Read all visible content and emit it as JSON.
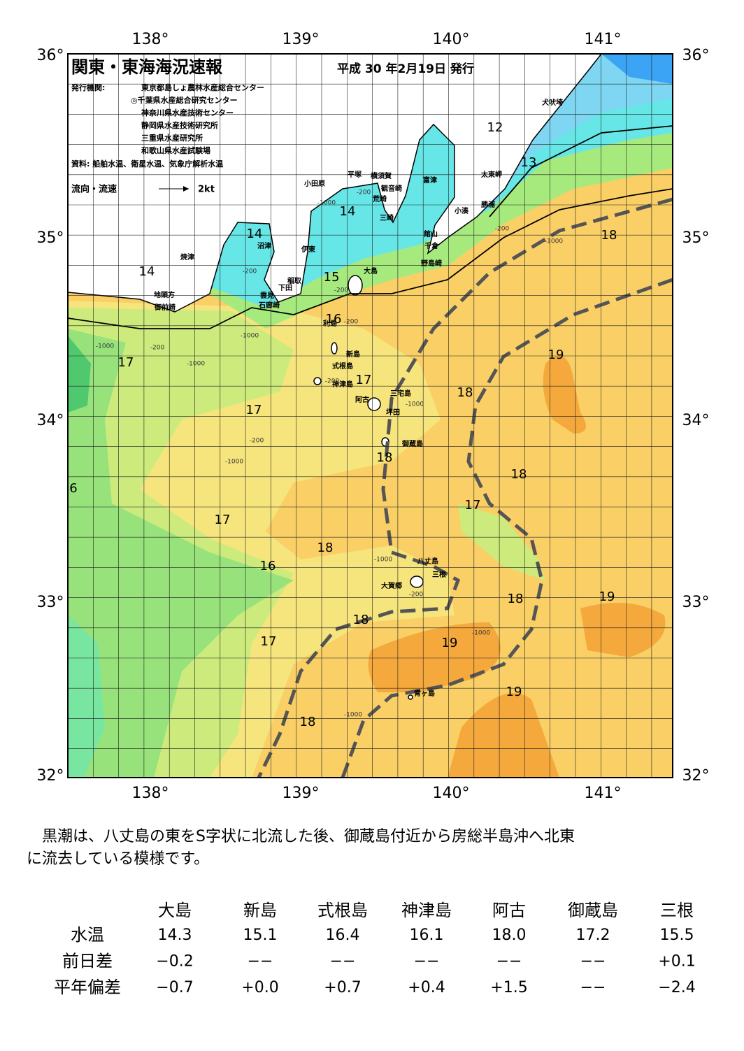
{
  "header": {
    "title": "関東・東海海況速報",
    "date": "平成 30 年2月19日 発行"
  },
  "publishers": {
    "label": "発行機関:",
    "items": [
      "東京都島しょ農林水産総合センター",
      "◎千葉県水産総合研究センター",
      "神奈川県水産技術センター",
      "静岡県水産技術研究所",
      "三重県水産研究所",
      "和歌山県水産試験場"
    ]
  },
  "source": "資料: 船舶水温、衛星水温、気象庁解析水温",
  "legend": {
    "label": "流向・流速",
    "scale": "2kt"
  },
  "axes": {
    "lon": [
      "138°",
      "139°",
      "140°",
      "141°"
    ],
    "lat": [
      "36°",
      "35°",
      "34°",
      "33°",
      "32°"
    ]
  },
  "isotherm_labels": [
    "12",
    "13",
    "14",
    "14",
    "14",
    "15",
    "16",
    "17",
    "17",
    "17",
    "18",
    "19",
    "18",
    "18",
    "18",
    "17",
    "6",
    "17",
    "18",
    "16",
    "18",
    "19",
    "18",
    "17",
    "19",
    "19",
    "18"
  ],
  "place_names": [
    "犬吠埼",
    "太東岬",
    "勝浦",
    "小湊",
    "富津",
    "観音崎",
    "横須賀",
    "平塚",
    "小田原",
    "荒崎",
    "三崎",
    "館山",
    "千倉",
    "野島崎",
    "沼津",
    "焼津",
    "伊東",
    "稲取",
    "下田",
    "雲見",
    "石廊崎",
    "地頭方",
    "御前崎",
    "大島",
    "利島",
    "新島",
    "式根島",
    "神津島",
    "三宅島",
    "阿古",
    "坪田",
    "御蔵島",
    "八丈島",
    "三根",
    "大賀郷",
    "青ヶ島"
  ],
  "depth_labels": [
    "-200",
    "-1000",
    "-200",
    "-1000",
    "-200",
    "-200",
    "-200",
    "-1000",
    "-200",
    "-1000",
    "-1000",
    "-200",
    "-1000",
    "-200",
    "-1000",
    "-1000",
    "-200",
    "-1000",
    "-1000"
  ],
  "summary": [
    "　黒潮は、八丈島の東をS字状に北流した後、御蔵島付近から房総半島沖へ北東",
    "に流去している模様です。"
  ],
  "table": {
    "columns": [
      "大島",
      "新島",
      "式根島",
      "神津島",
      "阿古",
      "御蔵島",
      "三根"
    ],
    "rows": [
      {
        "label": "水温",
        "cells": [
          "14.3",
          "15.1",
          "16.4",
          "16.1",
          "18.0",
          "17.2",
          "15.5"
        ]
      },
      {
        "label": "前日差",
        "cells": [
          "−0.2",
          "−−",
          "−−",
          "−−",
          "−−",
          "−−",
          "+0.1"
        ]
      },
      {
        "label": "平年偏差",
        "cells": [
          "−0.7",
          "+0.0",
          "+0.7",
          "+0.4",
          "+1.5",
          "−−",
          "−2.4"
        ]
      }
    ]
  }
}
